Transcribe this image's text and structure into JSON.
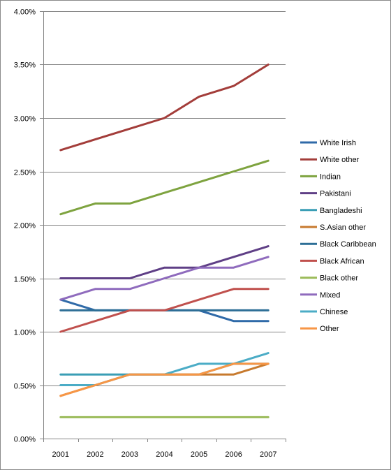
{
  "chart_data": {
    "type": "line",
    "title": "",
    "xlabel": "",
    "ylabel": "",
    "ylim": [
      0,
      0.04
    ],
    "y_ticks": [
      0,
      0.005,
      0.01,
      0.015,
      0.02,
      0.025,
      0.03,
      0.035,
      0.04
    ],
    "y_tick_labels": [
      "0.00%",
      "0.50%",
      "1.00%",
      "1.50%",
      "2.00%",
      "2.50%",
      "3.00%",
      "3.50%",
      "4.00%"
    ],
    "grid": "horizontal",
    "legend_position": "right",
    "categories": [
      "2001",
      "2002",
      "2003",
      "2004",
      "2005",
      "2006",
      "2007"
    ],
    "series": [
      {
        "name": "White Irish",
        "color": "#2f6aa8",
        "values": [
          0.013,
          0.012,
          0.012,
          0.012,
          0.012,
          0.011,
          0.011
        ]
      },
      {
        "name": "White other",
        "color": "#a33d3a",
        "values": [
          0.027,
          0.028,
          0.029,
          0.03,
          0.032,
          0.033,
          0.035
        ]
      },
      {
        "name": "Indian",
        "color": "#7ea33f",
        "values": [
          0.021,
          0.022,
          0.022,
          0.023,
          0.024,
          0.025,
          0.026
        ]
      },
      {
        "name": "Pakistani",
        "color": "#5f3f86",
        "values": [
          0.015,
          0.015,
          0.015,
          0.016,
          0.016,
          0.017,
          0.018
        ]
      },
      {
        "name": "Bangladeshi",
        "color": "#3a9eb5",
        "values": [
          0.006,
          0.006,
          0.006,
          0.006,
          0.006,
          0.007,
          0.007
        ]
      },
      {
        "name": "S.Asian other",
        "color": "#c77a2e",
        "values": [
          0.004,
          0.005,
          0.006,
          0.006,
          0.006,
          0.006,
          0.007
        ]
      },
      {
        "name": "Black Caribbean",
        "color": "#2d6e96",
        "values": [
          0.012,
          0.012,
          0.012,
          0.012,
          0.012,
          0.012,
          0.012
        ]
      },
      {
        "name": "Black African",
        "color": "#c0504d",
        "values": [
          0.01,
          0.011,
          0.012,
          0.012,
          0.013,
          0.014,
          0.014
        ]
      },
      {
        "name": "Black other",
        "color": "#9bbb59",
        "values": [
          0.002,
          0.002,
          0.002,
          0.002,
          0.002,
          0.002,
          0.002
        ]
      },
      {
        "name": "Mixed",
        "color": "#8f6bbd",
        "values": [
          0.013,
          0.014,
          0.014,
          0.015,
          0.016,
          0.016,
          0.017
        ]
      },
      {
        "name": "Chinese",
        "color": "#4bacc6",
        "values": [
          0.005,
          0.005,
          0.006,
          0.006,
          0.007,
          0.007,
          0.008
        ]
      },
      {
        "name": "Other",
        "color": "#f79646",
        "values": [
          0.004,
          0.005,
          0.006,
          0.006,
          0.006,
          0.007,
          0.007
        ]
      }
    ]
  }
}
